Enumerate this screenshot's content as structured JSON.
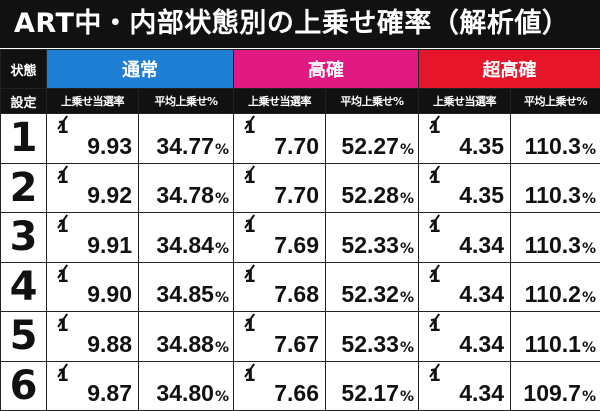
{
  "title": "ART中・内部状態別の上乗せ確率（解析値）",
  "row_header_state": "状態",
  "row_header_setting": "設定",
  "states": [
    {
      "name": "通常",
      "color": "#1f7fd4"
    },
    {
      "name": "高確",
      "color": "#e01a80"
    },
    {
      "name": "超高確",
      "color": "#e6152a"
    }
  ],
  "sub_headers": {
    "rate": "上乗せ当選率",
    "avg": "平均上乗せ%"
  },
  "fraction_numerator": "1",
  "percent_unit": "%",
  "rows": [
    {
      "setting": "1",
      "normal_rate": "9.93",
      "normal_avg": "34.77",
      "high_rate": "7.70",
      "high_avg": "52.27",
      "super_rate": "4.35",
      "super_avg": "110.3"
    },
    {
      "setting": "2",
      "normal_rate": "9.92",
      "normal_avg": "34.78",
      "high_rate": "7.70",
      "high_avg": "52.28",
      "super_rate": "4.35",
      "super_avg": "110.3"
    },
    {
      "setting": "3",
      "normal_rate": "9.91",
      "normal_avg": "34.84",
      "high_rate": "7.69",
      "high_avg": "52.33",
      "super_rate": "4.34",
      "super_avg": "110.3"
    },
    {
      "setting": "4",
      "normal_rate": "9.90",
      "normal_avg": "34.85",
      "high_rate": "7.68",
      "high_avg": "52.32",
      "super_rate": "4.34",
      "super_avg": "110.2"
    },
    {
      "setting": "5",
      "normal_rate": "9.88",
      "normal_avg": "34.88",
      "high_rate": "7.67",
      "high_avg": "52.33",
      "super_rate": "4.34",
      "super_avg": "110.1"
    },
    {
      "setting": "6",
      "normal_rate": "9.87",
      "normal_avg": "34.80",
      "high_rate": "7.66",
      "high_avg": "52.17",
      "super_rate": "4.34",
      "super_avg": "109.7"
    }
  ]
}
